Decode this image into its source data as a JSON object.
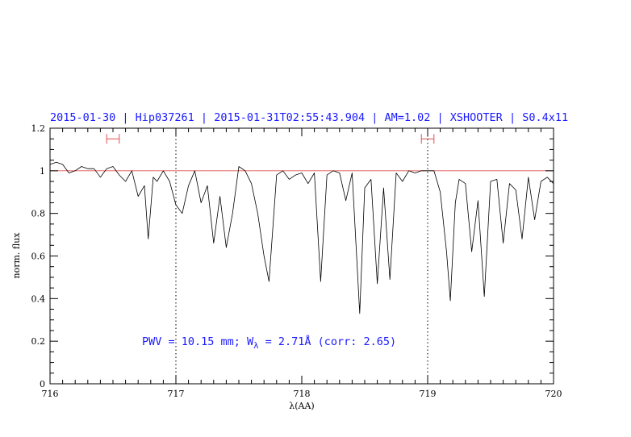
{
  "chart_data": {
    "type": "line",
    "title": "2015-01-30 | Hip037261 | 2015-01-31T02:55:43.904 | AM=1.02 | XSHOOTER | S0.4x11",
    "xlabel": "λ(AA)",
    "ylabel": "norm. flux",
    "xlim": [
      716,
      720
    ],
    "ylim": [
      0,
      1.2
    ],
    "xticks": [
      "716",
      "717",
      "718",
      "719",
      "720"
    ],
    "yticks": [
      "0",
      "0.2",
      "0.4",
      "0.6",
      "0.8",
      "1",
      "1.2"
    ],
    "grid": false,
    "reference_line": {
      "y": 1.0,
      "color": "#e05050"
    },
    "vertical_markers": [
      717.0,
      719.0
    ],
    "range_markers": [
      {
        "x0": 716.45,
        "x1": 716.55,
        "y": 1.15,
        "color": "#e05050"
      },
      {
        "x0": 718.95,
        "x1": 719.05,
        "y": 1.15,
        "color": "#e05050"
      }
    ],
    "annotation": {
      "prefix": "PWV = 10.15 mm; W",
      "subscript": "λ",
      "suffix": " = 2.71Å (corr: 2.65)",
      "x": 716.47,
      "y": 0.2
    },
    "series": [
      {
        "color": "#000000",
        "x": [
          716.0,
          716.05,
          716.1,
          716.15,
          716.2,
          716.25,
          716.3,
          716.35,
          716.4,
          716.45,
          716.5,
          716.55,
          716.6,
          716.65,
          716.7,
          716.75,
          716.78,
          716.82,
          716.85,
          716.9,
          716.95,
          717.0,
          717.05,
          717.1,
          717.15,
          717.2,
          717.25,
          717.3,
          717.35,
          717.4,
          717.45,
          717.5,
          717.55,
          717.6,
          717.65,
          717.7,
          717.74,
          717.8,
          717.85,
          717.9,
          717.95,
          718.0,
          718.05,
          718.1,
          718.15,
          718.2,
          718.25,
          718.3,
          718.35,
          718.4,
          718.46,
          718.5,
          718.55,
          718.6,
          718.65,
          718.7,
          718.75,
          718.8,
          718.85,
          718.9,
          718.95,
          719.0,
          719.05,
          719.1,
          719.15,
          719.18,
          719.22,
          719.25,
          719.3,
          719.35,
          719.4,
          719.45,
          719.5,
          719.55,
          719.6,
          719.65,
          719.7,
          719.75,
          719.8,
          719.85,
          719.9,
          719.95,
          720.0
        ],
        "y": [
          1.03,
          1.04,
          1.03,
          0.99,
          1.0,
          1.02,
          1.01,
          1.01,
          0.97,
          1.01,
          1.02,
          0.98,
          0.95,
          1.0,
          0.88,
          0.93,
          0.68,
          0.97,
          0.95,
          1.0,
          0.95,
          0.84,
          0.8,
          0.93,
          1.0,
          0.85,
          0.93,
          0.66,
          0.88,
          0.64,
          0.8,
          1.02,
          1.0,
          0.94,
          0.8,
          0.6,
          0.48,
          0.98,
          1.0,
          0.96,
          0.98,
          0.99,
          0.94,
          0.99,
          0.48,
          0.98,
          1.0,
          0.99,
          0.86,
          0.99,
          0.33,
          0.92,
          0.96,
          0.47,
          0.92,
          0.49,
          0.99,
          0.95,
          1.0,
          0.99,
          1.0,
          1.0,
          1.0,
          0.9,
          0.62,
          0.39,
          0.85,
          0.96,
          0.94,
          0.62,
          0.86,
          0.41,
          0.95,
          0.96,
          0.66,
          0.94,
          0.91,
          0.68,
          0.97,
          0.77,
          0.95,
          0.97,
          0.94
        ]
      }
    ]
  }
}
